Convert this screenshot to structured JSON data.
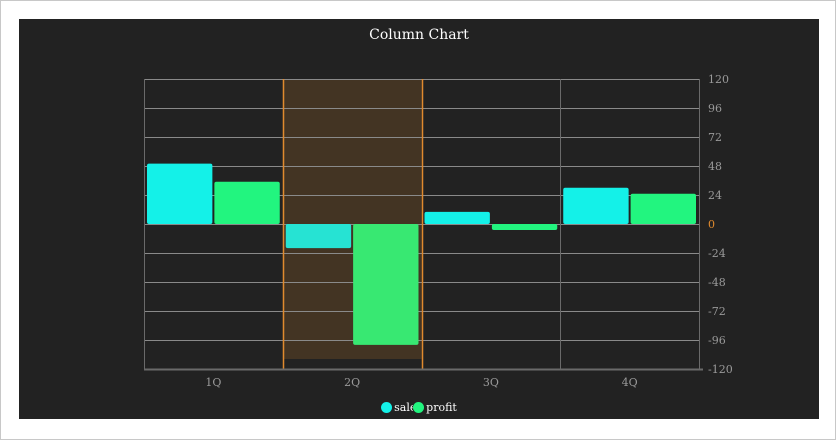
{
  "chart_data": {
    "type": "bar",
    "title": "Column Chart",
    "xlabel": "",
    "ylabel": "",
    "categories": [
      "1Q",
      "2Q",
      "3Q",
      "4Q"
    ],
    "series": [
      {
        "name": "sales",
        "values": [
          50,
          -20,
          10,
          30
        ],
        "color": "#14f1e8"
      },
      {
        "name": "profit",
        "values": [
          35,
          -100,
          -5,
          25
        ],
        "color": "#22f57f"
      }
    ],
    "ylim": [
      -120,
      120
    ],
    "yticks": [
      "120",
      "96",
      "72",
      "48",
      "24",
      "0",
      "-24",
      "-48",
      "-72",
      "-96",
      "-120"
    ],
    "y_axis_position": "right",
    "grid": true,
    "highlighted_category": "2Q",
    "highlight_color": "#e08a2e",
    "legend_position": "bottom-center"
  },
  "colors": {
    "background": "#222222",
    "grid": "#8a8a8a",
    "axis_text": "#9a9a9a",
    "zero_label": "#e08a2e"
  }
}
